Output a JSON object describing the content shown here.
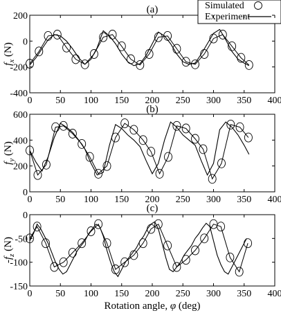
{
  "chart_data": [
    {
      "type": "line",
      "panel_label": "(a)",
      "ylabel": "f_x (N)",
      "ylabel_main": "f",
      "ylabel_sub": "x",
      "ylabel_unit": " (N)",
      "xlim": [
        0,
        400
      ],
      "ylim": [
        -400,
        200
      ],
      "xticks": [
        0,
        50,
        100,
        150,
        200,
        250,
        300,
        350,
        400
      ],
      "yticks": [
        -400,
        -200,
        0,
        200
      ],
      "legend": {
        "position": "top-right",
        "entries": [
          "Simulated",
          "Experiment"
        ]
      },
      "series": [
        {
          "name": "Simulated",
          "style": "line-with-circles",
          "x": [
            0,
            15,
            30,
            45,
            60,
            75,
            90,
            105,
            120,
            135,
            150,
            165,
            180,
            195,
            210,
            225,
            240,
            255,
            270,
            285,
            300,
            315,
            330,
            345,
            358
          ],
          "y": [
            -175,
            -80,
            40,
            50,
            -50,
            -140,
            -180,
            -100,
            30,
            50,
            -40,
            -140,
            -185,
            -100,
            30,
            40,
            -60,
            -160,
            -180,
            -100,
            20,
            50,
            -40,
            -130,
            -185
          ]
        },
        {
          "name": "Experiment",
          "style": "line",
          "x": [
            0,
            10,
            20,
            30,
            40,
            50,
            60,
            70,
            80,
            90,
            100,
            110,
            120,
            130,
            140,
            150,
            160,
            170,
            180,
            190,
            200,
            210,
            220,
            230,
            240,
            250,
            260,
            270,
            280,
            290,
            300,
            310,
            320,
            330,
            340,
            350,
            358
          ],
          "y": [
            -185,
            -130,
            -60,
            10,
            50,
            40,
            0,
            -60,
            -130,
            -180,
            -140,
            -50,
            80,
            40,
            -20,
            -100,
            -160,
            -190,
            -175,
            -110,
            -20,
            70,
            40,
            -20,
            -100,
            -160,
            -180,
            -170,
            -100,
            -20,
            60,
            90,
            10,
            -80,
            -140,
            -170,
            -190
          ]
        }
      ]
    },
    {
      "type": "line",
      "panel_label": "(b)",
      "ylabel": "f_y (N)",
      "ylabel_main": "f",
      "ylabel_sub": "y",
      "ylabel_unit": " (N)",
      "xlim": [
        0,
        400
      ],
      "ylim": [
        0,
        600
      ],
      "xticks": [
        0,
        50,
        100,
        150,
        200,
        250,
        300,
        350,
        400
      ],
      "yticks": [
        0,
        200,
        400,
        600
      ],
      "series": [
        {
          "name": "Simulated",
          "style": "line-with-circles",
          "x": [
            0,
            13,
            27,
            42,
            55,
            70,
            85,
            98,
            112,
            126,
            140,
            155,
            170,
            185,
            198,
            212,
            226,
            240,
            255,
            270,
            283,
            298,
            313,
            328,
            343,
            357
          ],
          "y": [
            320,
            130,
            210,
            500,
            510,
            450,
            370,
            270,
            140,
            200,
            420,
            530,
            480,
            400,
            310,
            140,
            270,
            510,
            490,
            410,
            330,
            100,
            220,
            520,
            500,
            420
          ]
        },
        {
          "name": "Experiment",
          "style": "line",
          "x": [
            0,
            10,
            20,
            30,
            40,
            50,
            60,
            70,
            80,
            90,
            100,
            110,
            120,
            130,
            140,
            150,
            160,
            170,
            180,
            190,
            200,
            210,
            220,
            230,
            240,
            250,
            260,
            270,
            280,
            290,
            300,
            310,
            320,
            330,
            340,
            350,
            358
          ],
          "y": [
            320,
            230,
            160,
            270,
            420,
            530,
            500,
            460,
            400,
            330,
            220,
            130,
            150,
            360,
            520,
            490,
            440,
            400,
            350,
            240,
            140,
            220,
            400,
            540,
            500,
            440,
            400,
            360,
            240,
            130,
            220,
            480,
            540,
            500,
            440,
            360,
            290
          ]
        }
      ]
    },
    {
      "type": "line",
      "panel_label": "(c)",
      "ylabel": "-f_z (N)",
      "ylabel_main": "-f",
      "ylabel_sub": "z",
      "ylabel_unit": " (N)",
      "xlabel": "Rotation angle, φ (deg)",
      "xlabel_main": "Rotation angle, ",
      "xlabel_phi": "φ",
      "xlabel_unit": " (deg)",
      "xlim": [
        0,
        400
      ],
      "ylim": [
        -150,
        0
      ],
      "xticks": [
        0,
        50,
        100,
        150,
        200,
        250,
        300,
        350,
        400
      ],
      "yticks": [
        -150,
        -100,
        -50,
        0
      ],
      "series": [
        {
          "name": "Simulated",
          "style": "line-with-circles",
          "x": [
            0,
            12,
            26,
            40,
            55,
            70,
            85,
            100,
            112,
            126,
            140,
            155,
            170,
            185,
            198,
            210,
            225,
            240,
            255,
            270,
            285,
            300,
            312,
            327,
            342,
            356
          ],
          "y": [
            -50,
            -25,
            -60,
            -110,
            -100,
            -80,
            -60,
            -35,
            -20,
            -60,
            -115,
            -100,
            -85,
            -60,
            -30,
            -20,
            -65,
            -110,
            -95,
            -75,
            -50,
            -20,
            -25,
            -90,
            -120,
            -60
          ]
        },
        {
          "name": "Experiment",
          "style": "line",
          "x": [
            0,
            6,
            12,
            18,
            24,
            30,
            36,
            42,
            48,
            54,
            60,
            66,
            72,
            78,
            84,
            90,
            96,
            102,
            108,
            114,
            120,
            126,
            132,
            138,
            144,
            150,
            156,
            162,
            168,
            174,
            180,
            186,
            192,
            198,
            204,
            210,
            216,
            222,
            228,
            234,
            240,
            246,
            252,
            258,
            264,
            270,
            276,
            282,
            288,
            294,
            300,
            306,
            312,
            318,
            324,
            330,
            336,
            342,
            348,
            354
          ],
          "y": [
            -55,
            -40,
            -20,
            -30,
            -45,
            -60,
            -80,
            -100,
            -115,
            -125,
            -120,
            -105,
            -90,
            -75,
            -65,
            -55,
            -40,
            -30,
            -20,
            -25,
            -45,
            -75,
            -100,
            -120,
            -130,
            -115,
            -100,
            -90,
            -80,
            -70,
            -55,
            -45,
            -30,
            -20,
            -15,
            -30,
            -60,
            -90,
            -115,
            -120,
            -110,
            -100,
            -85,
            -75,
            -65,
            -50,
            -40,
            -28,
            -18,
            -25,
            -55,
            -85,
            -105,
            -120,
            -125,
            -110,
            -95,
            -80,
            -65,
            -50
          ]
        }
      ]
    }
  ]
}
